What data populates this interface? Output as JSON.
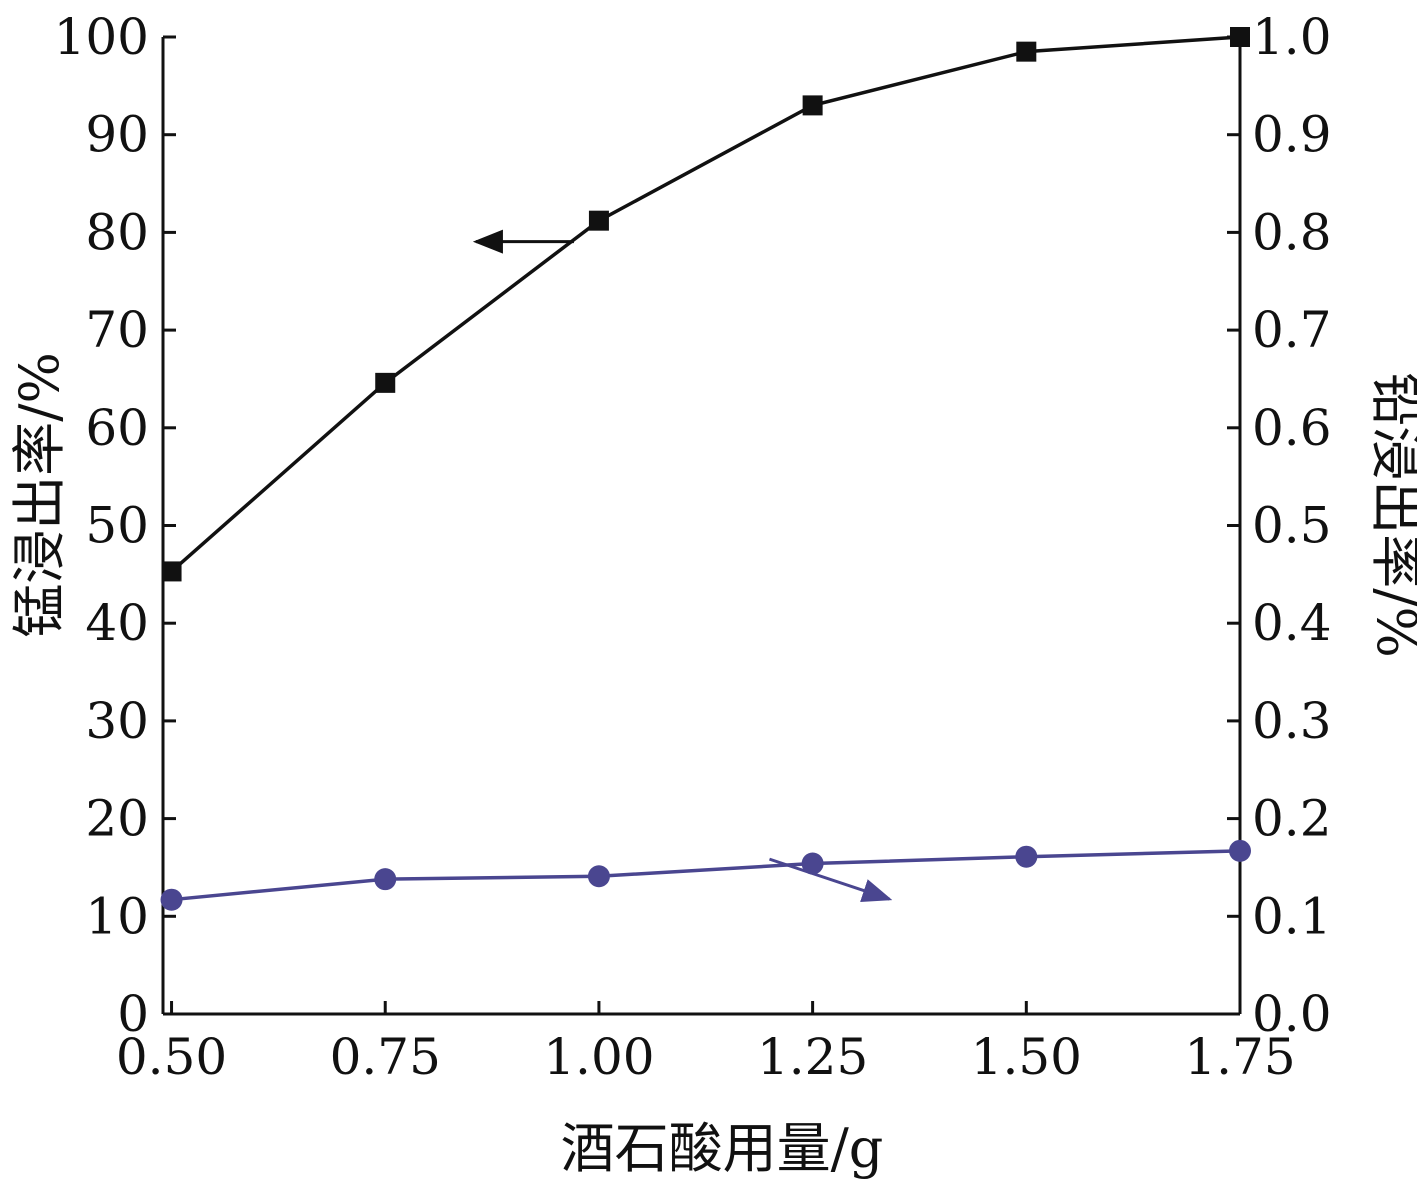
{
  "chart_data": {
    "type": "line",
    "xlabel": "酒石酸用量/g",
    "ylabel_left": "锰浸出率/%",
    "ylabel_right": "铅浸出率/%",
    "x": [
      0.5,
      0.75,
      1.0,
      1.25,
      1.5,
      1.75
    ],
    "xlim": [
      0.49,
      1.75
    ],
    "x_ticks": [
      0.5,
      0.75,
      1.0,
      1.25,
      1.5,
      1.75
    ],
    "x_tick_labels": [
      "0.50",
      "0.75",
      "1.00",
      "1.25",
      "1.50",
      "1.75"
    ],
    "ylim_left": [
      0,
      100
    ],
    "y_left_ticks": [
      0,
      10,
      20,
      30,
      40,
      50,
      60,
      70,
      80,
      90,
      100
    ],
    "y_left_tick_labels": [
      "0",
      "10",
      "20",
      "30",
      "40",
      "50",
      "60",
      "70",
      "80",
      "90",
      "100"
    ],
    "ylim_right": [
      0,
      1.0
    ],
    "y_right_ticks": [
      0,
      0.1,
      0.2,
      0.3,
      0.4,
      0.5,
      0.6,
      0.7,
      0.8,
      0.9,
      1.0
    ],
    "y_right_tick_labels": [
      "0.0",
      "0.1",
      "0.2",
      "0.3",
      "0.4",
      "0.5",
      "0.6",
      "0.7",
      "0.8",
      "0.9",
      "1.0"
    ],
    "grid": false,
    "series": [
      {
        "axis": "left",
        "marker": "square",
        "color": "#111111",
        "values": [
          45.3,
          64.6,
          81.2,
          93.0,
          98.5,
          100.0
        ],
        "indicator": "arrow pointing to left axis"
      },
      {
        "axis": "right",
        "marker": "circle",
        "color": "#4a4690",
        "values": [
          0.117,
          0.138,
          0.141,
          0.154,
          0.161,
          0.167
        ],
        "indicator": "arrow pointing to right axis"
      }
    ]
  }
}
